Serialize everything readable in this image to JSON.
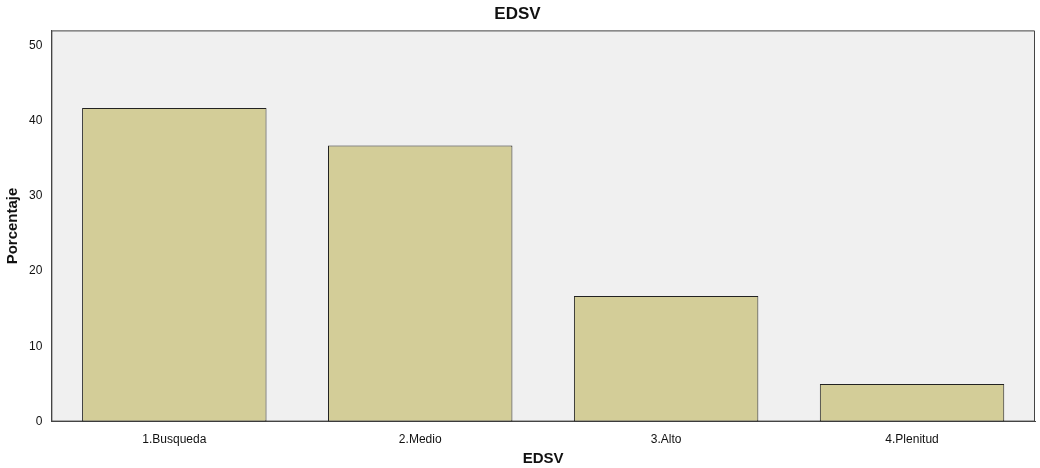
{
  "chart_data": {
    "type": "bar",
    "title": "EDSV",
    "xlabel": "EDSV",
    "ylabel": "Porcentaje",
    "categories": [
      "1.Busqueda",
      "2.Medio",
      "3.Alto",
      "4.Plenitud"
    ],
    "values": [
      41.7,
      36.7,
      16.7,
      5.0
    ],
    "color": "#d3cd98",
    "ylim": [
      0,
      52
    ],
    "yticks": [
      0,
      10,
      20,
      30,
      40,
      50
    ],
    "grid": false,
    "legend": false
  }
}
